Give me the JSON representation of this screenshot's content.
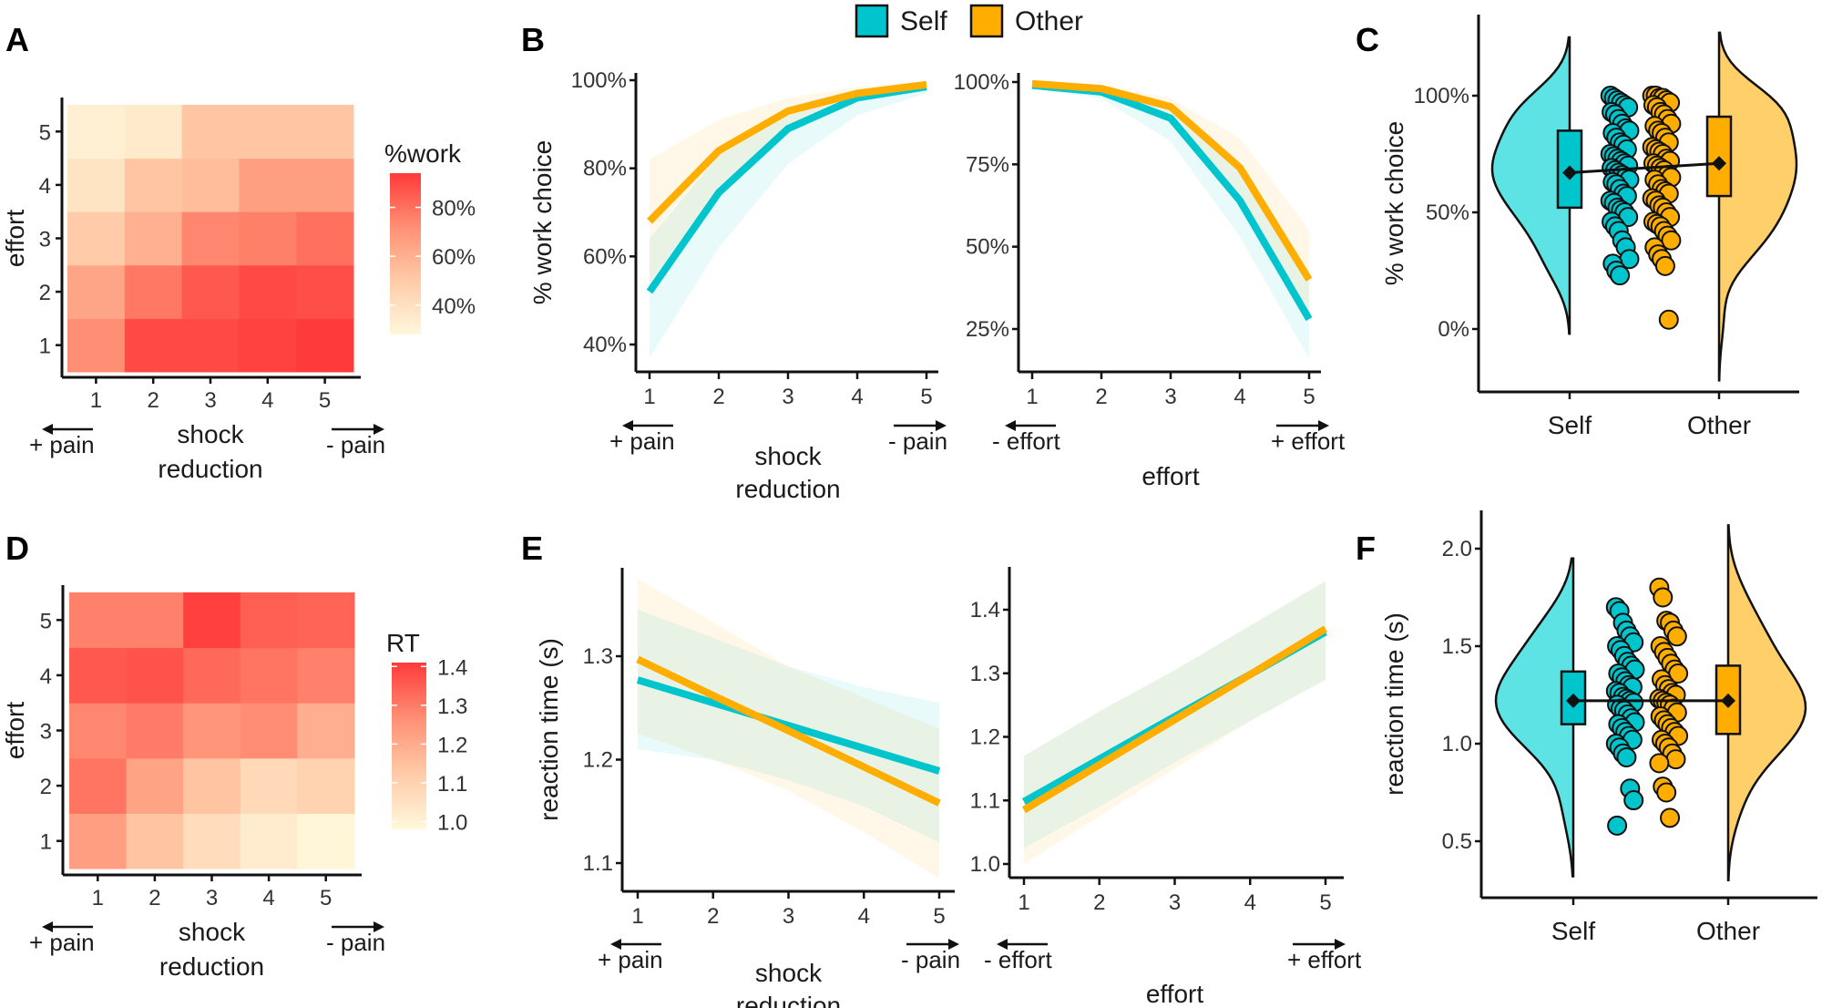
{
  "legend": {
    "items": [
      {
        "name": "Self",
        "color": "#00C5CD"
      },
      {
        "name": "Other",
        "color": "#FFAE00"
      }
    ]
  },
  "colors": {
    "self": "#00C5CD",
    "other": "#FFAE00",
    "self_violin": "#5DE3E3",
    "other_violin": "#FFD06A",
    "heat_low": "#FFF8DC",
    "heat_high": "#FF3A3A"
  },
  "direction_labels": {
    "plus_pain": "+ pain",
    "minus_pain": "- pain",
    "minus_effort": "- effort",
    "plus_effort": "+ effort"
  },
  "chart_data": [
    {
      "id": "A",
      "panel_label": "A",
      "type": "heatmap",
      "xlabel": "shock reduction",
      "xlabel_lines": [
        "shock",
        "reduction"
      ],
      "ylabel": "effort",
      "x_categories": [
        "1",
        "2",
        "3",
        "4",
        "5"
      ],
      "y_categories": [
        "1",
        "2",
        "3",
        "4",
        "5"
      ],
      "legend_title": "%work",
      "legend_ticks": [
        "40%",
        "60%",
        "80%"
      ],
      "legend_tick_values": [
        40,
        60,
        80
      ],
      "value_range": [
        28,
        94
      ],
      "values_by_effort_row": {
        "5": [
          32,
          35,
          52,
          52,
          52
        ],
        "4": [
          38,
          52,
          55,
          66,
          66
        ],
        "3": [
          50,
          60,
          74,
          76,
          80
        ],
        "2": [
          64,
          78,
          86,
          90,
          89
        ],
        "1": [
          72,
          90,
          90,
          92,
          94
        ]
      }
    },
    {
      "id": "B1",
      "panel_label": "B",
      "type": "line",
      "xlabel": "shock reduction",
      "xlabel_lines": [
        "shock",
        "reduction"
      ],
      "ylabel": "% work choice",
      "x": [
        1,
        2,
        3,
        4,
        5
      ],
      "y_ticks": [
        "40%",
        "60%",
        "80%",
        "100%"
      ],
      "y_tick_values": [
        40,
        60,
        80,
        100
      ],
      "ylim": [
        36,
        103
      ],
      "series": [
        {
          "name": "Self",
          "values": [
            52,
            74.5,
            89,
            96,
            98.5
          ],
          "ci_low": [
            37,
            62,
            81,
            92,
            97
          ],
          "ci_high": [
            64,
            83,
            94,
            98,
            99.5
          ]
        },
        {
          "name": "Other",
          "values": [
            68,
            84,
            93,
            97,
            99
          ],
          "ci_low": [
            54,
            76,
            88,
            95,
            98
          ],
          "ci_high": [
            82,
            91,
            96,
            98.5,
            99.7
          ]
        }
      ]
    },
    {
      "id": "B2",
      "panel_label": "",
      "type": "line",
      "xlabel": "effort",
      "ylabel": "",
      "x": [
        1,
        2,
        3,
        4,
        5
      ],
      "y_ticks": [
        "25%",
        "50%",
        "75%",
        "100%"
      ],
      "y_tick_values": [
        25,
        50,
        75,
        100
      ],
      "ylim": [
        12,
        102
      ],
      "series": [
        {
          "name": "Self",
          "values": [
            99,
            97,
            89,
            64,
            28
          ],
          "ci_low": [
            98,
            95,
            82,
            53,
            16
          ],
          "ci_high": [
            99.6,
            98.5,
            93,
            73,
            40
          ]
        },
        {
          "name": "Other",
          "values": [
            99.5,
            98,
            92.5,
            74,
            40
          ],
          "ci_low": [
            99,
            96.5,
            88,
            64,
            28
          ],
          "ci_high": [
            99.8,
            99,
            95,
            83,
            55
          ]
        }
      ]
    },
    {
      "id": "C",
      "panel_label": "C",
      "type": "raincloud",
      "ylabel": "% work choice",
      "categories": [
        "Self",
        "Other"
      ],
      "y_ticks": [
        "0%",
        "50%",
        "100%"
      ],
      "y_tick_values": [
        0,
        50,
        100
      ],
      "ylim": [
        -23,
        130
      ],
      "groups": [
        {
          "name": "Self",
          "q1": 52,
          "q3": 85,
          "mean": 67,
          "violin_range": [
            -2,
            125
          ],
          "points": [
            100,
            99,
            98,
            97,
            96,
            95,
            93,
            92,
            90,
            88,
            86,
            85,
            84,
            82,
            80,
            79,
            77,
            75,
            74,
            73,
            72,
            71,
            70,
            69,
            68,
            67,
            66,
            65,
            64,
            63,
            62,
            60,
            58,
            57,
            55,
            54,
            52,
            51,
            50,
            48,
            46,
            44,
            42,
            38,
            35,
            30,
            28,
            25,
            23
          ]
        },
        {
          "name": "Other",
          "q1": 57,
          "q3": 91,
          "mean": 71,
          "violin_range": [
            -22,
            127
          ],
          "points": [
            100,
            100,
            99,
            99,
            98,
            97,
            96,
            95,
            93,
            92,
            90,
            88,
            87,
            85,
            84,
            82,
            80,
            78,
            77,
            76,
            75,
            73,
            72,
            71,
            70,
            69,
            68,
            66,
            65,
            64,
            62,
            60,
            59,
            58,
            56,
            55,
            53,
            52,
            50,
            48,
            46,
            45,
            44,
            42,
            40,
            38,
            35,
            32,
            30,
            27,
            4
          ]
        }
      ]
    },
    {
      "id": "D",
      "panel_label": "D",
      "type": "heatmap",
      "xlabel": "shock reduction",
      "xlabel_lines": [
        "shock",
        "reduction"
      ],
      "ylabel": "effort",
      "x_categories": [
        "1",
        "2",
        "3",
        "4",
        "5"
      ],
      "y_categories": [
        "1",
        "2",
        "3",
        "4",
        "5"
      ],
      "legend_title": "RT",
      "legend_ticks": [
        "1.0",
        "1.1",
        "1.2",
        "1.3",
        "1.4"
      ],
      "legend_tick_values": [
        1.0,
        1.1,
        1.2,
        1.3,
        1.4
      ],
      "value_range": [
        0.98,
        1.41
      ],
      "values_by_effort_row": {
        "5": [
          1.29,
          1.29,
          1.4,
          1.35,
          1.34
        ],
        "4": [
          1.36,
          1.37,
          1.33,
          1.31,
          1.29
        ],
        "3": [
          1.28,
          1.3,
          1.25,
          1.27,
          1.19
        ],
        "2": [
          1.31,
          1.22,
          1.14,
          1.08,
          1.1
        ],
        "1": [
          1.23,
          1.14,
          1.07,
          1.02,
          0.99
        ]
      }
    },
    {
      "id": "E1",
      "panel_label": "E",
      "type": "line",
      "xlabel": "shock reduction",
      "xlabel_lines": [
        "shock",
        "reduction"
      ],
      "ylabel": "reaction time (s)",
      "x": [
        1,
        2,
        3,
        4,
        5
      ],
      "y_ticks": [
        "1.1",
        "1.2",
        "1.3"
      ],
      "y_tick_values": [
        1.1,
        1.2,
        1.3
      ],
      "ylim": [
        1.07,
        1.385
      ],
      "series": [
        {
          "name": "Self",
          "values": [
            1.277,
            1.255,
            1.233,
            1.211,
            1.189
          ],
          "ci_low": [
            1.21,
            1.2,
            1.18,
            1.155,
            1.12
          ],
          "ci_high": [
            1.345,
            1.318,
            1.29,
            1.27,
            1.255
          ]
        },
        {
          "name": "Other",
          "values": [
            1.297,
            1.262,
            1.228,
            1.193,
            1.158
          ],
          "ci_low": [
            1.225,
            1.2,
            1.17,
            1.13,
            1.085
          ],
          "ci_high": [
            1.375,
            1.333,
            1.29,
            1.26,
            1.23
          ]
        }
      ]
    },
    {
      "id": "E2",
      "panel_label": "",
      "type": "line",
      "xlabel": "effort",
      "ylabel": "",
      "x": [
        1,
        2,
        3,
        4,
        5
      ],
      "y_ticks": [
        "1.0",
        "1.1",
        "1.2",
        "1.3",
        "1.4"
      ],
      "y_tick_values": [
        1.0,
        1.1,
        1.2,
        1.3,
        1.4
      ],
      "ylim": [
        0.978,
        1.465
      ],
      "series": [
        {
          "name": "Self",
          "values": [
            1.098,
            1.165,
            1.232,
            1.298,
            1.365
          ],
          "ci_low": [
            1.025,
            1.09,
            1.16,
            1.225,
            1.29
          ],
          "ci_high": [
            1.17,
            1.24,
            1.305,
            1.375,
            1.445
          ]
        },
        {
          "name": "Other",
          "values": [
            1.085,
            1.156,
            1.227,
            1.298,
            1.37
          ],
          "ci_low": [
            1.0,
            1.075,
            1.15,
            1.225,
            1.29
          ],
          "ci_high": [
            1.17,
            1.24,
            1.305,
            1.375,
            1.445
          ]
        }
      ]
    },
    {
      "id": "F",
      "panel_label": "F",
      "type": "raincloud",
      "ylabel": "reaction time (s)",
      "categories": [
        "Self",
        "Other"
      ],
      "y_ticks": [
        "0.5",
        "1.0",
        "1.5",
        "2.0"
      ],
      "y_tick_values": [
        0.5,
        1.0,
        1.5,
        2.0
      ],
      "ylim": [
        0.23,
        2.2
      ],
      "groups": [
        {
          "name": "Self",
          "q1": 1.1,
          "q3": 1.37,
          "mean": 1.22,
          "violin_range": [
            0.32,
            1.95
          ],
          "points": [
            1.7,
            1.68,
            1.62,
            1.58,
            1.55,
            1.52,
            1.5,
            1.48,
            1.45,
            1.42,
            1.4,
            1.38,
            1.36,
            1.34,
            1.32,
            1.3,
            1.29,
            1.27,
            1.26,
            1.24,
            1.23,
            1.22,
            1.21,
            1.2,
            1.18,
            1.17,
            1.15,
            1.13,
            1.11,
            1.1,
            1.08,
            1.06,
            1.04,
            1.02,
            1.0,
            0.98,
            0.95,
            0.93,
            0.77,
            0.71,
            0.58
          ]
        },
        {
          "name": "Other",
          "q1": 1.05,
          "q3": 1.4,
          "mean": 1.22,
          "violin_range": [
            0.3,
            2.12
          ],
          "points": [
            1.8,
            1.75,
            1.63,
            1.62,
            1.58,
            1.55,
            1.5,
            1.47,
            1.44,
            1.41,
            1.38,
            1.36,
            1.33,
            1.3,
            1.28,
            1.26,
            1.25,
            1.23,
            1.22,
            1.21,
            1.2,
            1.18,
            1.16,
            1.14,
            1.12,
            1.1,
            1.08,
            1.06,
            1.04,
            1.02,
            1.0,
            0.98,
            0.95,
            0.92,
            0.9,
            0.78,
            0.75,
            0.62
          ]
        }
      ]
    }
  ]
}
